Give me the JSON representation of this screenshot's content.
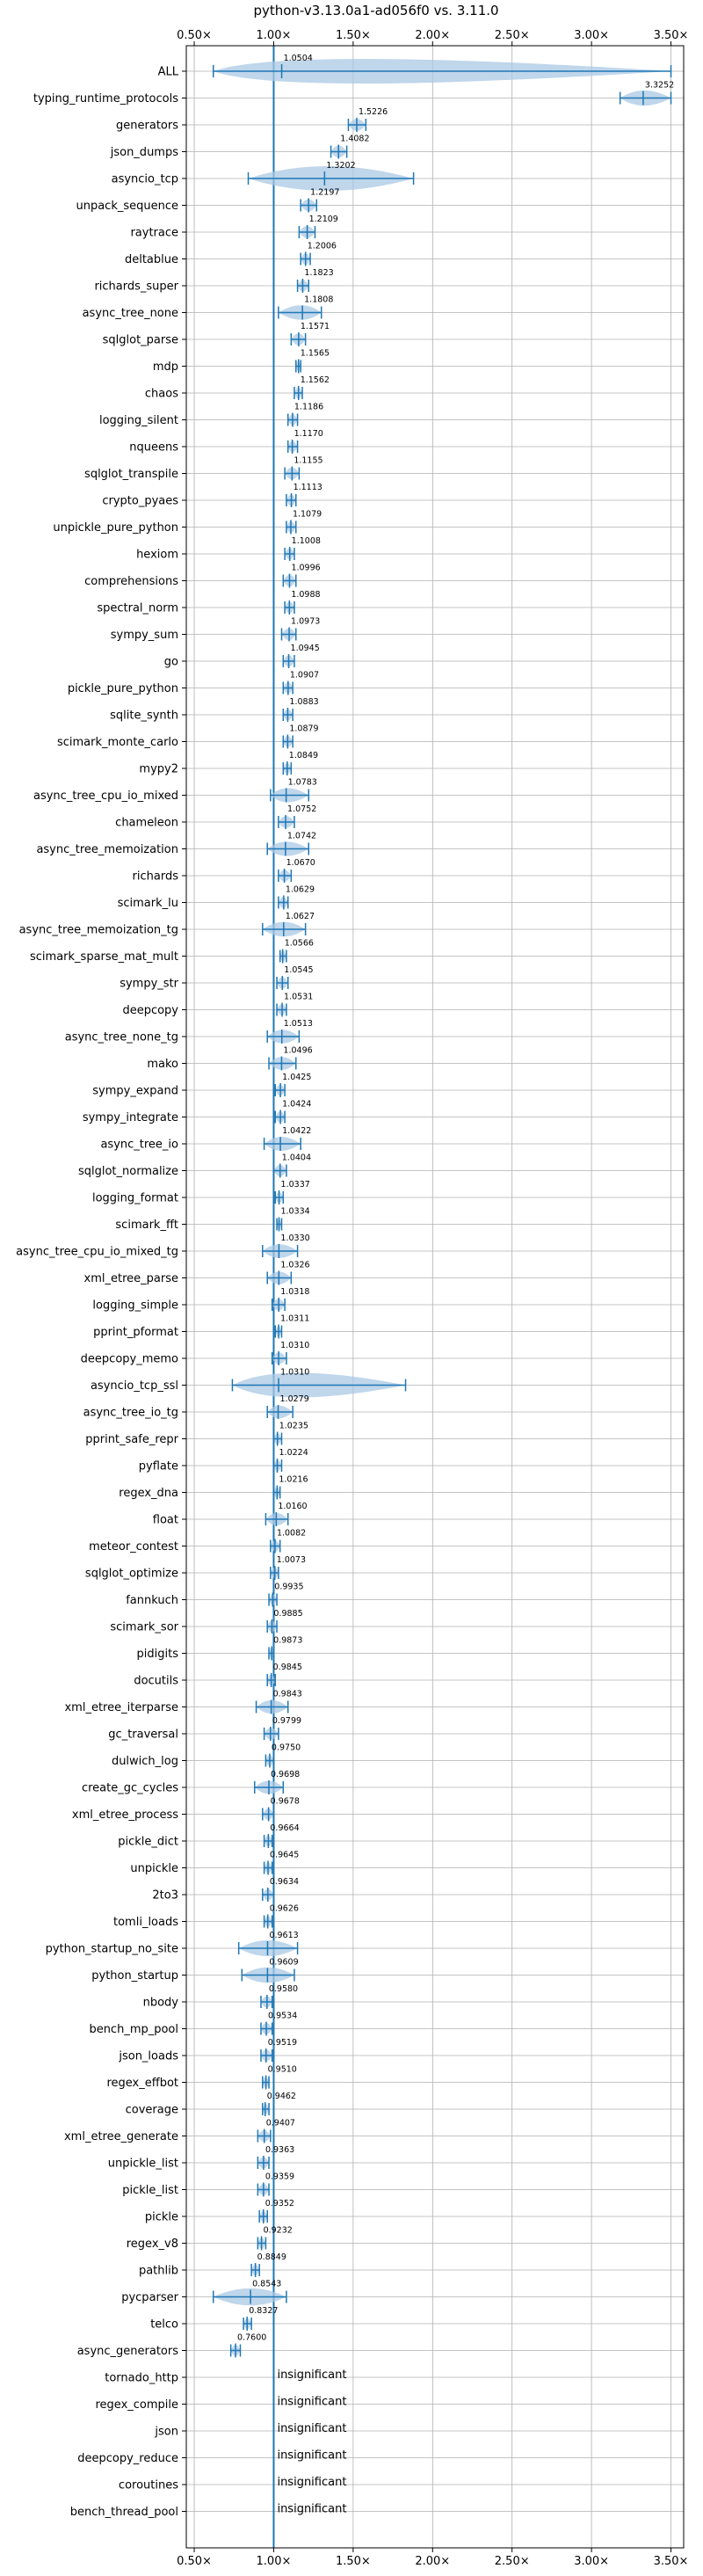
{
  "chart_data": {
    "type": "violin",
    "title": "python-v3.13.0a1-ad056f0 vs. 3.11.0",
    "xlim": [
      0.45,
      3.58
    ],
    "x_ticks": [
      "0.50×",
      "1.00×",
      "1.50×",
      "2.00×",
      "2.50×",
      "3.00×",
      "3.50×"
    ],
    "reference_x": 1.0,
    "grid": true,
    "colors": {
      "line": "#1f77b4",
      "violin": "#aac8e4"
    },
    "insignificant_label": "insignificant",
    "rows": [
      {
        "name": "ALL",
        "value": 1.0504,
        "label": "1.0504",
        "min": 0.62,
        "max": 3.5
      },
      {
        "name": "typing_runtime_protocols",
        "value": 3.3252,
        "label": "3.3252",
        "min": 3.18,
        "max": 3.5
      },
      {
        "name": "generators",
        "value": 1.5226,
        "label": "1.5226",
        "min": 1.47,
        "max": 1.58
      },
      {
        "name": "json_dumps",
        "value": 1.4082,
        "label": "1.4082",
        "min": 1.36,
        "max": 1.46
      },
      {
        "name": "asyncio_tcp",
        "value": 1.3202,
        "label": "1.3202",
        "min": 0.84,
        "max": 1.88
      },
      {
        "name": "unpack_sequence",
        "value": 1.2197,
        "label": "1.2197",
        "min": 1.17,
        "max": 1.27
      },
      {
        "name": "raytrace",
        "value": 1.2109,
        "label": "1.2109",
        "min": 1.16,
        "max": 1.26
      },
      {
        "name": "deltablue",
        "value": 1.2006,
        "label": "1.2006",
        "min": 1.17,
        "max": 1.23
      },
      {
        "name": "richards_super",
        "value": 1.1823,
        "label": "1.1823",
        "min": 1.15,
        "max": 1.22
      },
      {
        "name": "async_tree_none",
        "value": 1.1808,
        "label": "1.1808",
        "min": 1.03,
        "max": 1.3
      },
      {
        "name": "sqlglot_parse",
        "value": 1.1571,
        "label": "1.1571",
        "min": 1.11,
        "max": 1.2
      },
      {
        "name": "mdp",
        "value": 1.1565,
        "label": "1.1565",
        "min": 1.14,
        "max": 1.17
      },
      {
        "name": "chaos",
        "value": 1.1562,
        "label": "1.1562",
        "min": 1.13,
        "max": 1.18
      },
      {
        "name": "logging_silent",
        "value": 1.1186,
        "label": "1.1186",
        "min": 1.09,
        "max": 1.15
      },
      {
        "name": "nqueens",
        "value": 1.117,
        "label": "1.1170",
        "min": 1.09,
        "max": 1.15
      },
      {
        "name": "sqlglot_transpile",
        "value": 1.1155,
        "label": "1.1155",
        "min": 1.07,
        "max": 1.16
      },
      {
        "name": "crypto_pyaes",
        "value": 1.1113,
        "label": "1.1113",
        "min": 1.08,
        "max": 1.14
      },
      {
        "name": "unpickle_pure_python",
        "value": 1.1079,
        "label": "1.1079",
        "min": 1.08,
        "max": 1.14
      },
      {
        "name": "hexiom",
        "value": 1.1008,
        "label": "1.1008",
        "min": 1.07,
        "max": 1.13
      },
      {
        "name": "comprehensions",
        "value": 1.0996,
        "label": "1.0996",
        "min": 1.06,
        "max": 1.14
      },
      {
        "name": "spectral_norm",
        "value": 1.0988,
        "label": "1.0988",
        "min": 1.07,
        "max": 1.13
      },
      {
        "name": "sympy_sum",
        "value": 1.0973,
        "label": "1.0973",
        "min": 1.05,
        "max": 1.14
      },
      {
        "name": "go",
        "value": 1.0945,
        "label": "1.0945",
        "min": 1.06,
        "max": 1.13
      },
      {
        "name": "pickle_pure_python",
        "value": 1.0907,
        "label": "1.0907",
        "min": 1.06,
        "max": 1.12
      },
      {
        "name": "sqlite_synth",
        "value": 1.0883,
        "label": "1.0883",
        "min": 1.06,
        "max": 1.12
      },
      {
        "name": "scimark_monte_carlo",
        "value": 1.0879,
        "label": "1.0879",
        "min": 1.06,
        "max": 1.12
      },
      {
        "name": "mypy2",
        "value": 1.0849,
        "label": "1.0849",
        "min": 1.06,
        "max": 1.11
      },
      {
        "name": "async_tree_cpu_io_mixed",
        "value": 1.0783,
        "label": "1.0783",
        "min": 0.98,
        "max": 1.22
      },
      {
        "name": "chameleon",
        "value": 1.0752,
        "label": "1.0752",
        "min": 1.03,
        "max": 1.13
      },
      {
        "name": "async_tree_memoization",
        "value": 1.0742,
        "label": "1.0742",
        "min": 0.96,
        "max": 1.22
      },
      {
        "name": "richards",
        "value": 1.067,
        "label": "1.0670",
        "min": 1.03,
        "max": 1.11
      },
      {
        "name": "scimark_lu",
        "value": 1.0629,
        "label": "1.0629",
        "min": 1.03,
        "max": 1.09
      },
      {
        "name": "async_tree_memoization_tg",
        "value": 1.0627,
        "label": "1.0627",
        "min": 0.93,
        "max": 1.2
      },
      {
        "name": "scimark_sparse_mat_mult",
        "value": 1.0566,
        "label": "1.0566",
        "min": 1.04,
        "max": 1.08
      },
      {
        "name": "sympy_str",
        "value": 1.0545,
        "label": "1.0545",
        "min": 1.02,
        "max": 1.09
      },
      {
        "name": "deepcopy",
        "value": 1.0531,
        "label": "1.0531",
        "min": 1.02,
        "max": 1.08
      },
      {
        "name": "async_tree_none_tg",
        "value": 1.0513,
        "label": "1.0513",
        "min": 0.96,
        "max": 1.16
      },
      {
        "name": "mako",
        "value": 1.0496,
        "label": "1.0496",
        "min": 0.97,
        "max": 1.14
      },
      {
        "name": "sympy_expand",
        "value": 1.0425,
        "label": "1.0425",
        "min": 1.01,
        "max": 1.07
      },
      {
        "name": "sympy_integrate",
        "value": 1.0424,
        "label": "1.0424",
        "min": 1.01,
        "max": 1.07
      },
      {
        "name": "async_tree_io",
        "value": 1.0422,
        "label": "1.0422",
        "min": 0.94,
        "max": 1.17
      },
      {
        "name": "sqlglot_normalize",
        "value": 1.0404,
        "label": "1.0404",
        "min": 1.0,
        "max": 1.08
      },
      {
        "name": "logging_format",
        "value": 1.0337,
        "label": "1.0337",
        "min": 1.01,
        "max": 1.06
      },
      {
        "name": "scimark_fft",
        "value": 1.0334,
        "label": "1.0334",
        "min": 1.02,
        "max": 1.05
      },
      {
        "name": "async_tree_cpu_io_mixed_tg",
        "value": 1.033,
        "label": "1.0330",
        "min": 0.93,
        "max": 1.15
      },
      {
        "name": "xml_etree_parse",
        "value": 1.0326,
        "label": "1.0326",
        "min": 0.96,
        "max": 1.11
      },
      {
        "name": "logging_simple",
        "value": 1.0318,
        "label": "1.0318",
        "min": 0.99,
        "max": 1.07
      },
      {
        "name": "pprint_pformat",
        "value": 1.0311,
        "label": "1.0311",
        "min": 1.01,
        "max": 1.05
      },
      {
        "name": "deepcopy_memo",
        "value": 1.031,
        "label": "1.0310",
        "min": 0.99,
        "max": 1.08
      },
      {
        "name": "asyncio_tcp_ssl",
        "value": 1.031,
        "label": "1.0310",
        "min": 0.74,
        "max": 1.83
      },
      {
        "name": "async_tree_io_tg",
        "value": 1.0279,
        "label": "1.0279",
        "min": 0.96,
        "max": 1.12
      },
      {
        "name": "pprint_safe_repr",
        "value": 1.0235,
        "label": "1.0235",
        "min": 1.0,
        "max": 1.05
      },
      {
        "name": "pyflate",
        "value": 1.0224,
        "label": "1.0224",
        "min": 1.0,
        "max": 1.05
      },
      {
        "name": "regex_dna",
        "value": 1.0216,
        "label": "1.0216",
        "min": 1.0,
        "max": 1.04
      },
      {
        "name": "float",
        "value": 1.016,
        "label": "1.0160",
        "min": 0.95,
        "max": 1.09
      },
      {
        "name": "meteor_contest",
        "value": 1.0082,
        "label": "1.0082",
        "min": 0.98,
        "max": 1.04
      },
      {
        "name": "sqlglot_optimize",
        "value": 1.0073,
        "label": "1.0073",
        "min": 0.98,
        "max": 1.03
      },
      {
        "name": "fannkuch",
        "value": 0.9935,
        "label": "0.9935",
        "min": 0.97,
        "max": 1.02
      },
      {
        "name": "scimark_sor",
        "value": 0.9885,
        "label": "0.9885",
        "min": 0.96,
        "max": 1.02
      },
      {
        "name": "pidigits",
        "value": 0.9873,
        "label": "0.9873",
        "min": 0.97,
        "max": 1.0
      },
      {
        "name": "docutils",
        "value": 0.9845,
        "label": "0.9845",
        "min": 0.96,
        "max": 1.01
      },
      {
        "name": "xml_etree_iterparse",
        "value": 0.9843,
        "label": "0.9843",
        "min": 0.89,
        "max": 1.09
      },
      {
        "name": "gc_traversal",
        "value": 0.9799,
        "label": "0.9799",
        "min": 0.94,
        "max": 1.03
      },
      {
        "name": "dulwich_log",
        "value": 0.975,
        "label": "0.9750",
        "min": 0.95,
        "max": 1.0
      },
      {
        "name": "create_gc_cycles",
        "value": 0.9698,
        "label": "0.9698",
        "min": 0.88,
        "max": 1.06
      },
      {
        "name": "xml_etree_process",
        "value": 0.9678,
        "label": "0.9678",
        "min": 0.93,
        "max": 1.0
      },
      {
        "name": "pickle_dict",
        "value": 0.9664,
        "label": "0.9664",
        "min": 0.94,
        "max": 0.99
      },
      {
        "name": "unpickle",
        "value": 0.9645,
        "label": "0.9645",
        "min": 0.94,
        "max": 0.99
      },
      {
        "name": "2to3",
        "value": 0.9634,
        "label": "0.9634",
        "min": 0.93,
        "max": 1.0
      },
      {
        "name": "tomli_loads",
        "value": 0.9626,
        "label": "0.9626",
        "min": 0.94,
        "max": 0.99
      },
      {
        "name": "python_startup_no_site",
        "value": 0.9613,
        "label": "0.9613",
        "min": 0.78,
        "max": 1.15
      },
      {
        "name": "python_startup",
        "value": 0.9609,
        "label": "0.9609",
        "min": 0.8,
        "max": 1.13
      },
      {
        "name": "nbody",
        "value": 0.958,
        "label": "0.9580",
        "min": 0.92,
        "max": 0.99
      },
      {
        "name": "bench_mp_pool",
        "value": 0.9534,
        "label": "0.9534",
        "min": 0.92,
        "max": 0.99
      },
      {
        "name": "json_loads",
        "value": 0.9519,
        "label": "0.9519",
        "min": 0.92,
        "max": 0.99
      },
      {
        "name": "regex_effbot",
        "value": 0.951,
        "label": "0.9510",
        "min": 0.93,
        "max": 0.97
      },
      {
        "name": "coverage",
        "value": 0.9462,
        "label": "0.9462",
        "min": 0.93,
        "max": 0.97
      },
      {
        "name": "xml_etree_generate",
        "value": 0.9407,
        "label": "0.9407",
        "min": 0.9,
        "max": 0.98
      },
      {
        "name": "unpickle_list",
        "value": 0.9363,
        "label": "0.9363",
        "min": 0.9,
        "max": 0.97
      },
      {
        "name": "pickle_list",
        "value": 0.9359,
        "label": "0.9359",
        "min": 0.9,
        "max": 0.97
      },
      {
        "name": "pickle",
        "value": 0.9352,
        "label": "0.9352",
        "min": 0.91,
        "max": 0.96
      },
      {
        "name": "regex_v8",
        "value": 0.9232,
        "label": "0.9232",
        "min": 0.9,
        "max": 0.95
      },
      {
        "name": "pathlib",
        "value": 0.8849,
        "label": "0.8849",
        "min": 0.86,
        "max": 0.91
      },
      {
        "name": "pycparser",
        "value": 0.8543,
        "label": "0.8543",
        "min": 0.62,
        "max": 1.08
      },
      {
        "name": "telco",
        "value": 0.8327,
        "label": "0.8327",
        "min": 0.81,
        "max": 0.86
      },
      {
        "name": "async_generators",
        "value": 0.76,
        "label": "0.7600",
        "min": 0.73,
        "max": 0.79
      },
      {
        "name": "tornado_http",
        "value": null,
        "insignificant": true
      },
      {
        "name": "regex_compile",
        "value": null,
        "insignificant": true
      },
      {
        "name": "json",
        "value": null,
        "insignificant": true
      },
      {
        "name": "deepcopy_reduce",
        "value": null,
        "insignificant": true
      },
      {
        "name": "coroutines",
        "value": null,
        "insignificant": true
      },
      {
        "name": "bench_thread_pool",
        "value": null,
        "insignificant": true
      }
    ]
  }
}
